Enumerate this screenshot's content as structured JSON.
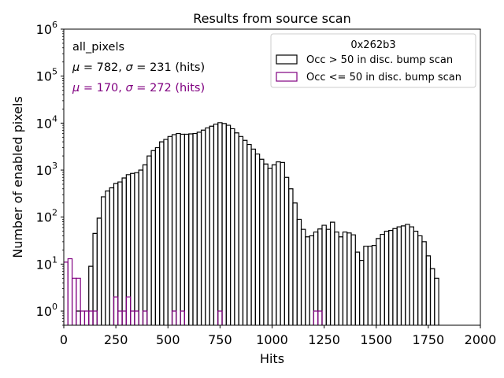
{
  "chart_data": {
    "type": "histogram",
    "title": "Results from source scan",
    "xlabel": "Hits",
    "ylabel": "Number of enabled pixels",
    "xlim": [
      0,
      2000
    ],
    "ylim": [
      0.5,
      1000000
    ],
    "yscale": "log",
    "bin_width": 20,
    "x_ticks": [
      0,
      250,
      500,
      750,
      1000,
      1250,
      1500,
      1750,
      2000
    ],
    "x_tick_labels": [
      "0",
      "250",
      "500",
      "750",
      "1000",
      "1250",
      "1500",
      "1750",
      "2000"
    ],
    "y_ticks": [
      1,
      10,
      100,
      1000,
      10000,
      100000,
      1000000
    ],
    "y_tick_labels": [
      {
        "base": "10",
        "exp": "0"
      },
      {
        "base": "10",
        "exp": "1"
      },
      {
        "base": "10",
        "exp": "2"
      },
      {
        "base": "10",
        "exp": "3"
      },
      {
        "base": "10",
        "exp": "4"
      },
      {
        "base": "10",
        "exp": "5"
      },
      {
        "base": "10",
        "exp": "6"
      }
    ],
    "annotations": {
      "dataset": "all_pixels",
      "stats": [
        {
          "mu_sym": "μ",
          "mu_text": " = 782, ",
          "sigma_sym": "σ",
          "sigma_text": " = 231 (hits)",
          "color": "#000000"
        },
        {
          "mu_sym": "μ",
          "mu_text": " = 170, ",
          "sigma_sym": "σ",
          "sigma_text": " = 272 (hits)",
          "color": "#800080"
        }
      ]
    },
    "legend": {
      "title": "0x262b3",
      "location": "top-right"
    },
    "series": [
      {
        "name": "Occ > 50 in disc. bump scan",
        "color": "#000000",
        "bins": [
          [
            60,
            80,
            1
          ],
          [
            120,
            140,
            9
          ],
          [
            140,
            160,
            45
          ],
          [
            160,
            180,
            95
          ],
          [
            180,
            200,
            270
          ],
          [
            200,
            220,
            360
          ],
          [
            220,
            240,
            420
          ],
          [
            240,
            260,
            520
          ],
          [
            260,
            280,
            560
          ],
          [
            280,
            300,
            680
          ],
          [
            300,
            320,
            800
          ],
          [
            320,
            340,
            850
          ],
          [
            340,
            360,
            880
          ],
          [
            360,
            380,
            1000
          ],
          [
            380,
            400,
            1300
          ],
          [
            400,
            420,
            2000
          ],
          [
            420,
            440,
            2600
          ],
          [
            440,
            460,
            3000
          ],
          [
            460,
            480,
            4000
          ],
          [
            480,
            500,
            4500
          ],
          [
            500,
            520,
            5200
          ],
          [
            520,
            540,
            5700
          ],
          [
            540,
            560,
            6000
          ],
          [
            560,
            580,
            5800
          ],
          [
            580,
            600,
            5800
          ],
          [
            600,
            620,
            5900
          ],
          [
            620,
            640,
            6000
          ],
          [
            640,
            660,
            6400
          ],
          [
            660,
            680,
            7100
          ],
          [
            680,
            700,
            7900
          ],
          [
            700,
            720,
            8600
          ],
          [
            720,
            740,
            9500
          ],
          [
            740,
            760,
            10200
          ],
          [
            760,
            780,
            9800
          ],
          [
            780,
            800,
            9000
          ],
          [
            800,
            820,
            7600
          ],
          [
            820,
            840,
            6200
          ],
          [
            840,
            860,
            5200
          ],
          [
            860,
            880,
            4300
          ],
          [
            880,
            900,
            3500
          ],
          [
            900,
            920,
            2800
          ],
          [
            920,
            940,
            2200
          ],
          [
            940,
            960,
            1700
          ],
          [
            960,
            980,
            1350
          ],
          [
            980,
            1000,
            1100
          ],
          [
            1000,
            1020,
            1300
          ],
          [
            1020,
            1040,
            1500
          ],
          [
            1040,
            1060,
            1450
          ],
          [
            1060,
            1080,
            700
          ],
          [
            1080,
            1100,
            400
          ],
          [
            1100,
            1120,
            200
          ],
          [
            1120,
            1140,
            90
          ],
          [
            1140,
            1160,
            55
          ],
          [
            1160,
            1180,
            38
          ],
          [
            1180,
            1200,
            40
          ],
          [
            1200,
            1220,
            48
          ],
          [
            1220,
            1240,
            56
          ],
          [
            1240,
            1260,
            67
          ],
          [
            1260,
            1280,
            55
          ],
          [
            1280,
            1300,
            78
          ],
          [
            1300,
            1320,
            48
          ],
          [
            1320,
            1340,
            38
          ],
          [
            1340,
            1360,
            48
          ],
          [
            1360,
            1380,
            46
          ],
          [
            1380,
            1400,
            42
          ],
          [
            1400,
            1420,
            18
          ],
          [
            1420,
            1440,
            12
          ],
          [
            1440,
            1460,
            24
          ],
          [
            1460,
            1480,
            24
          ],
          [
            1480,
            1500,
            25
          ],
          [
            1500,
            1520,
            35
          ],
          [
            1520,
            1540,
            43
          ],
          [
            1540,
            1560,
            50
          ],
          [
            1560,
            1580,
            52
          ],
          [
            1580,
            1600,
            57
          ],
          [
            1600,
            1620,
            62
          ],
          [
            1620,
            1640,
            65
          ],
          [
            1640,
            1660,
            70
          ],
          [
            1660,
            1680,
            62
          ],
          [
            1680,
            1700,
            50
          ],
          [
            1700,
            1720,
            40
          ],
          [
            1720,
            1740,
            30
          ],
          [
            1740,
            1760,
            15
          ],
          [
            1760,
            1780,
            8
          ],
          [
            1780,
            1800,
            5
          ]
        ]
      },
      {
        "name": "Occ <= 50 in disc. bump scan",
        "color": "#800080",
        "bins": [
          [
            0,
            20,
            11
          ],
          [
            20,
            40,
            13
          ],
          [
            40,
            60,
            5
          ],
          [
            60,
            80,
            5
          ],
          [
            80,
            100,
            1
          ],
          [
            100,
            120,
            1
          ],
          [
            120,
            140,
            1
          ],
          [
            140,
            160,
            1
          ],
          [
            240,
            260,
            2
          ],
          [
            260,
            280,
            1
          ],
          [
            280,
            300,
            1
          ],
          [
            300,
            320,
            2
          ],
          [
            320,
            340,
            1
          ],
          [
            340,
            360,
            1
          ],
          [
            380,
            400,
            1
          ],
          [
            520,
            540,
            1
          ],
          [
            560,
            580,
            1
          ],
          [
            740,
            760,
            1
          ],
          [
            1200,
            1220,
            1
          ],
          [
            1220,
            1240,
            1
          ]
        ]
      }
    ]
  }
}
